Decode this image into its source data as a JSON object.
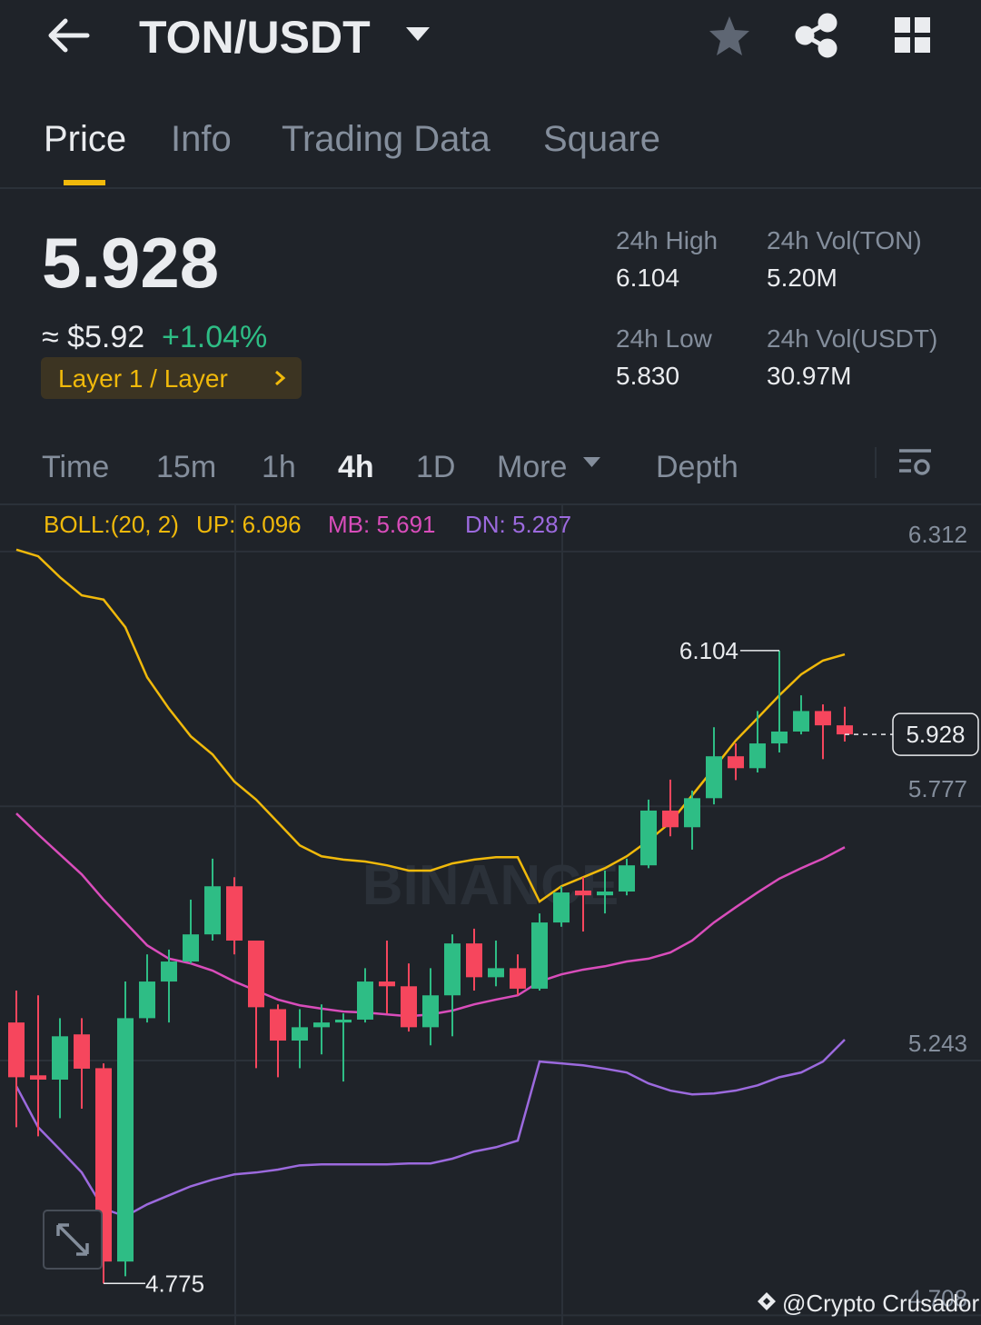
{
  "header": {
    "title": "TON/USDT"
  },
  "tabs": [
    "Price",
    "Info",
    "Trading Data",
    "Square"
  ],
  "ticker": {
    "price": "5.928",
    "fiat": "≈ $5.92",
    "change": "+1.04%",
    "tag": "Layer 1 / Layer",
    "stats": [
      {
        "label": "24h High",
        "value": "6.104"
      },
      {
        "label": "24h Vol(TON)",
        "value": "5.20M"
      },
      {
        "label": "24h Low",
        "value": "5.830"
      },
      {
        "label": "24h Vol(USDT)",
        "value": "30.97M"
      }
    ]
  },
  "intervals": [
    "Time",
    "15m",
    "1h",
    "4h",
    "1D",
    "More",
    "Depth"
  ],
  "chart_data": {
    "type": "candlestick",
    "indicator": "BOLL:(20, 2)",
    "open": [
      5.323,
      5.212,
      5.203,
      5.298,
      5.227,
      4.821,
      5.332,
      5.409,
      5.451,
      5.508,
      5.609,
      5.495,
      5.351,
      5.285,
      5.313,
      5.323,
      5.329,
      5.409,
      5.399,
      5.313,
      5.38,
      5.489,
      5.418,
      5.437,
      5.394,
      5.533,
      5.6,
      5.59,
      5.598,
      5.653,
      5.768,
      5.733,
      5.794,
      5.882,
      5.857,
      5.909,
      5.934,
      5.977,
      5.947
    ],
    "high": [
      5.39,
      5.38,
      5.332,
      5.332,
      5.237,
      5.409,
      5.466,
      5.476,
      5.581,
      5.667,
      5.628,
      5.495,
      5.361,
      5.351,
      5.361,
      5.342,
      5.437,
      5.495,
      5.447,
      5.437,
      5.508,
      5.52,
      5.495,
      5.466,
      5.552,
      5.609,
      5.628,
      5.642,
      5.667,
      5.791,
      5.833,
      5.81,
      5.943,
      5.909,
      5.977,
      6.104,
      6.01,
      5.991,
      5.986
    ],
    "low": [
      5.103,
      5.084,
      5.122,
      5.142,
      4.775,
      4.79,
      5.323,
      5.323,
      5.447,
      5.495,
      5.466,
      5.227,
      5.208,
      5.227,
      5.256,
      5.199,
      5.323,
      5.342,
      5.304,
      5.275,
      5.294,
      5.39,
      5.399,
      5.38,
      5.39,
      5.524,
      5.514,
      5.552,
      5.59,
      5.647,
      5.714,
      5.686,
      5.781,
      5.832,
      5.848,
      5.89,
      5.928,
      5.876,
      5.913
    ],
    "close": [
      5.208,
      5.203,
      5.294,
      5.226,
      4.821,
      5.332,
      5.409,
      5.451,
      5.508,
      5.609,
      5.495,
      5.355,
      5.285,
      5.313,
      5.323,
      5.329,
      5.409,
      5.399,
      5.313,
      5.38,
      5.489,
      5.418,
      5.437,
      5.394,
      5.533,
      5.596,
      5.59,
      5.598,
      5.653,
      5.768,
      5.733,
      5.794,
      5.882,
      5.857,
      5.909,
      5.934,
      5.977,
      5.947,
      5.928
    ],
    "up_color": "#2ebd85",
    "down_color": "#f6465d",
    "series": [
      {
        "name": "UP: 6.096",
        "color": "#f0b90b",
        "values": [
          6.316,
          6.302,
          6.258,
          6.22,
          6.211,
          6.153,
          6.048,
          5.982,
          5.924,
          5.886,
          5.829,
          5.791,
          5.743,
          5.695,
          5.672,
          5.665,
          5.661,
          5.653,
          5.642,
          5.642,
          5.657,
          5.665,
          5.67,
          5.67,
          5.577,
          5.609,
          5.628,
          5.647,
          5.672,
          5.705,
          5.743,
          5.8,
          5.857,
          5.915,
          5.962,
          6.01,
          6.054,
          6.083,
          6.096
        ]
      },
      {
        "name": "MB: 5.691",
        "color": "#d94dbb",
        "values": [
          5.762,
          5.718,
          5.676,
          5.634,
          5.581,
          5.533,
          5.485,
          5.457,
          5.447,
          5.432,
          5.409,
          5.39,
          5.371,
          5.359,
          5.352,
          5.346,
          5.344,
          5.34,
          5.336,
          5.34,
          5.348,
          5.361,
          5.371,
          5.38,
          5.409,
          5.424,
          5.434,
          5.441,
          5.451,
          5.457,
          5.47,
          5.495,
          5.533,
          5.565,
          5.596,
          5.625,
          5.647,
          5.667,
          5.691
        ]
      },
      {
        "name": "DN: 5.287",
        "color": "#9c6ade",
        "values": [
          5.189,
          5.103,
          5.056,
          5.008,
          4.932,
          4.916,
          4.941,
          4.96,
          4.979,
          4.993,
          5.004,
          5.008,
          5.014,
          5.023,
          5.025,
          5.025,
          5.025,
          5.025,
          5.027,
          5.027,
          5.037,
          5.052,
          5.061,
          5.075,
          5.241,
          5.237,
          5.233,
          5.226,
          5.218,
          5.195,
          5.18,
          5.172,
          5.174,
          5.18,
          5.191,
          5.208,
          5.218,
          5.241,
          5.287
        ]
      }
    ],
    "ylim": [
      4.703,
      6.411
    ],
    "yticks": [
      4.708,
      5.243,
      5.777,
      6.312
    ],
    "max_marker": 6.104,
    "min_marker": 4.775,
    "last_price": 5.928,
    "watermark": "BINANCE"
  },
  "footer": {
    "watermark": "@Crypto Crusador"
  }
}
